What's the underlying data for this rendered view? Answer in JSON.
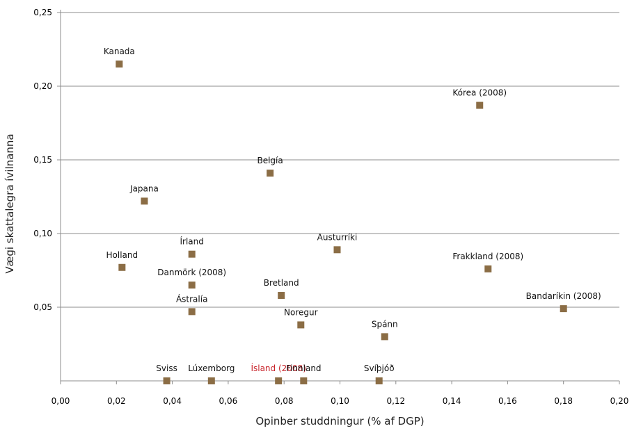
{
  "chart_data": {
    "type": "scatter",
    "xlabel": "Opinber studdningur (% af DGP)",
    "ylabel": "Vægi skattalegra ívilnanna",
    "xlim": [
      0.0,
      0.2
    ],
    "ylim": [
      0.0,
      0.25
    ],
    "x_ticks": [
      "0,00",
      "0,02",
      "0,04",
      "0,06",
      "0,08",
      "0,10",
      "0,12",
      "0,14",
      "0,16",
      "0,18",
      "0,20"
    ],
    "y_ticks": [
      "0,05",
      "0,10",
      "0,15",
      "0,20",
      "0,25"
    ],
    "grid": "horizontal",
    "marker_color": "#8b6d45",
    "highlight_color": "#c8242b",
    "points": [
      {
        "label": "Kanada",
        "x": 0.021,
        "y": 0.215
      },
      {
        "label": "Kórea (2008)",
        "x": 0.15,
        "y": 0.187
      },
      {
        "label": "Belgía",
        "x": 0.075,
        "y": 0.141
      },
      {
        "label": "Japana",
        "x": 0.03,
        "y": 0.122
      },
      {
        "label": "Írland",
        "x": 0.047,
        "y": 0.086
      },
      {
        "label": "Austurríki",
        "x": 0.099,
        "y": 0.089
      },
      {
        "label": "Holland",
        "x": 0.022,
        "y": 0.077
      },
      {
        "label": "Frakkland (2008)",
        "x": 0.153,
        "y": 0.076
      },
      {
        "label": "Danmörk (2008)",
        "x": 0.047,
        "y": 0.065
      },
      {
        "label": "Bretland",
        "x": 0.079,
        "y": 0.058
      },
      {
        "label": "Ástralía",
        "x": 0.047,
        "y": 0.047
      },
      {
        "label": "Bandaríkin (2008)",
        "x": 0.18,
        "y": 0.049
      },
      {
        "label": "Noregur",
        "x": 0.086,
        "y": 0.038
      },
      {
        "label": "Spánn",
        "x": 0.116,
        "y": 0.03
      },
      {
        "label": "Sviss",
        "x": 0.038,
        "y": 0.0
      },
      {
        "label": "Lúxemborg",
        "x": 0.054,
        "y": 0.0
      },
      {
        "label": "Ísland (2008)",
        "x": 0.078,
        "y": 0.0,
        "highlight": true
      },
      {
        "label": "Finnland",
        "x": 0.087,
        "y": 0.0
      },
      {
        "label": "Svíþjóð",
        "x": 0.114,
        "y": 0.0
      }
    ]
  }
}
